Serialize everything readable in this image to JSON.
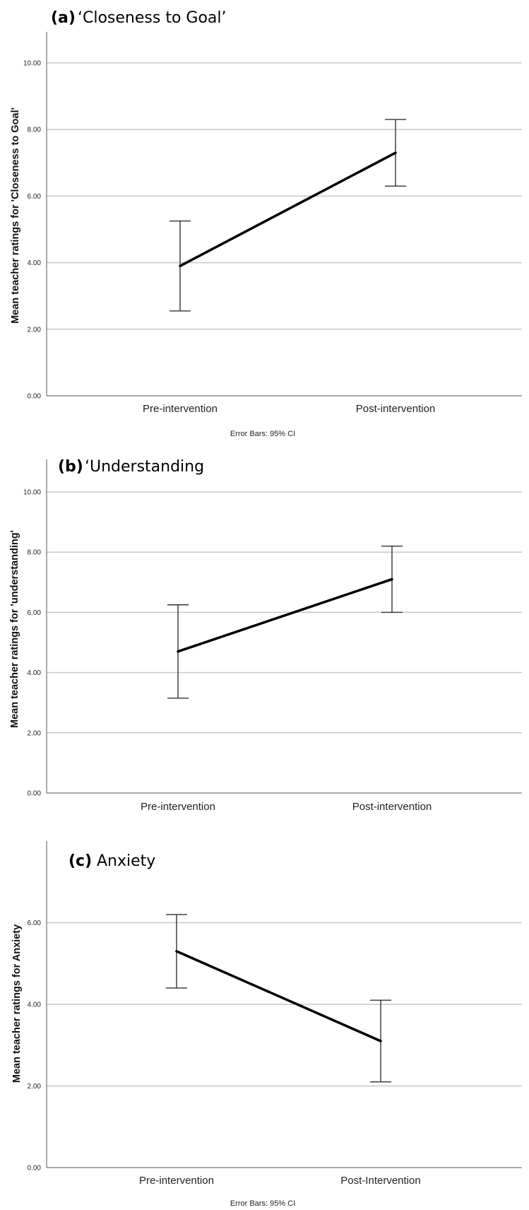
{
  "chart_data": [
    {
      "type": "line",
      "title_prefix": "(a)",
      "title": "‘Closeness to Goal’",
      "ylabel": "Mean teacher ratings for 'Closeness to Goal'",
      "categories": [
        "Pre-intervention",
        "Post-intervention"
      ],
      "values": [
        3.9,
        7.3
      ],
      "ci_low": [
        2.55,
        6.3
      ],
      "ci_high": [
        5.25,
        8.3
      ],
      "yticks": [
        "0.00",
        "2.00",
        "4.00",
        "6.00",
        "8.00",
        "10.00"
      ],
      "ylim": [
        0,
        10
      ],
      "grid": true,
      "note": "Error Bars: 95% CI"
    },
    {
      "type": "line",
      "title_prefix": "(b)",
      "title": "‘Understanding",
      "ylabel": "Mean teacher ratings for 'understanding'",
      "categories": [
        "Pre-intervention",
        "Post-intervention"
      ],
      "values": [
        4.7,
        7.1
      ],
      "ci_low": [
        3.15,
        6.0
      ],
      "ci_high": [
        6.25,
        8.2
      ],
      "yticks": [
        "0.00",
        "2.00",
        "4.00",
        "6.00",
        "8.00",
        "10.00"
      ],
      "ylim": [
        0,
        10
      ],
      "grid": true,
      "note": ""
    },
    {
      "type": "line",
      "title_prefix": "(c)",
      "title": "Anxiety",
      "ylabel": "Mean teacher ratings for Anxiety",
      "categories": [
        "Pre-intervention",
        "Post-Intervention"
      ],
      "values": [
        5.3,
        3.1
      ],
      "ci_low": [
        4.4,
        2.1
      ],
      "ci_high": [
        6.2,
        4.1
      ],
      "yticks": [
        "0.00",
        "2.00",
        "4.00",
        "6.00"
      ],
      "ylim": [
        0,
        8
      ],
      "grid": true,
      "note": "Error Bars: 95% CI"
    }
  ]
}
